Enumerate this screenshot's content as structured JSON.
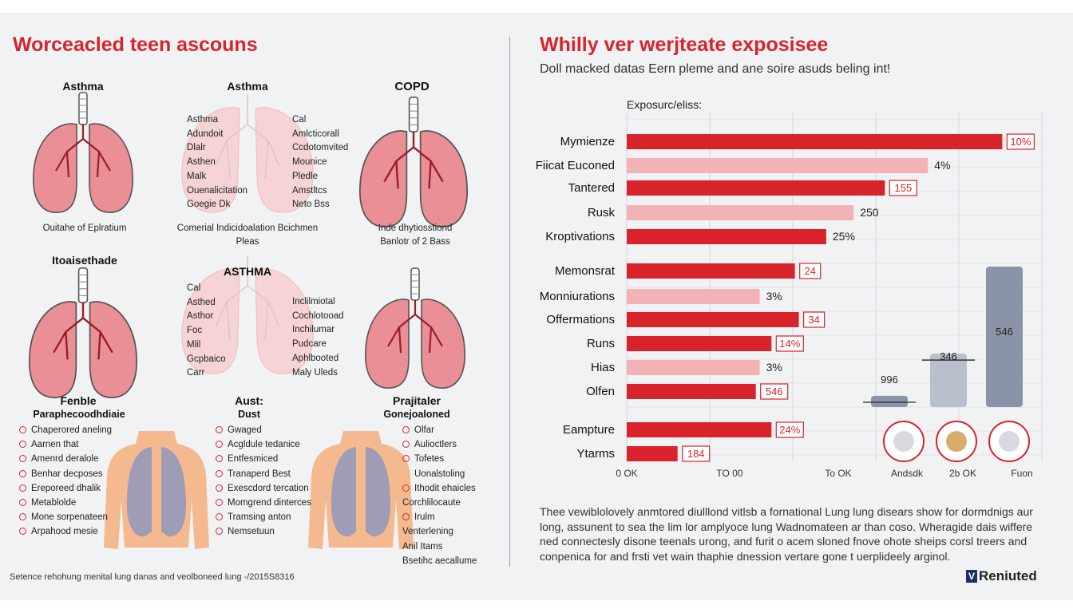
{
  "left": {
    "title": "Worceacled teen ascouns",
    "panels": [
      {
        "title": "Asthma",
        "caption": "Ouitahe of Eplratium"
      },
      {
        "title": "Asthma",
        "caption": "Comerial Indicidoalation Bcichmen Pleas",
        "labels_left": [
          "Asthma",
          "Adundoit",
          "Dlalr",
          "Asthen",
          "Malk",
          "Ouenalicitation",
          "Goegie Dk"
        ],
        "labels_right": [
          "Cal",
          "Amlcticorall",
          "Ccdotomvited",
          "Mounice",
          "Pledle",
          "Amstltcs",
          "Neto Bss"
        ]
      },
      {
        "title": "COPD",
        "caption": "Inde dhytiosstiond Banlotr of 2 Bass"
      },
      {
        "title": "Itoaisethade"
      },
      {
        "title": "ASTHMA",
        "labels_left": [
          "Cal",
          "Asthed",
          "Asthor",
          "Foc",
          "Mlil",
          "Gcpbaico",
          "Carr"
        ],
        "labels_right": [
          "Inclilmiotal",
          "Cochlotooad",
          "Inchilumar",
          "Pudcare",
          "Aphlbooted",
          "Maly Uleds"
        ]
      },
      {
        "title": ""
      }
    ],
    "bottom": [
      {
        "heading1": "Fenble",
        "heading2": "Paraphecoodhdiaie",
        "items": [
          "Chaperored aneling",
          "Aarnen that",
          "Amenrd deralole",
          "Benhar decposes",
          "Ereporeed dhalik",
          "Metablolde",
          "Mone sorpenateen",
          "Arpahood mesie"
        ]
      },
      {
        "heading1": "Aust:",
        "heading2": "Dust",
        "items": [
          "Gwaged",
          "Acgldule tedanice",
          "Entfesmiced",
          "Tranaperd Best",
          "Exescdord tercation",
          "Momgrend dinterces",
          "Tramsing anton",
          "Nemsetuun"
        ]
      },
      {
        "heading1": "Prajitaler",
        "heading2": "Gonejoaloned",
        "items": [
          "Olfar",
          "Aulioctlers",
          "Tofetes",
          "Uonalstoling",
          "Ithodit ehaicles",
          "Corchlilocaute",
          "Irulm",
          "Venterlening",
          "Anil Itams",
          "Bsetihc aecallume"
        ]
      }
    ],
    "footnote": "Setence rehohung menital lung danas and veolboneed lung -/2015S8316"
  },
  "right": {
    "title": "Whilly ver werjteate exposisee",
    "subtitle": "Doll macked datas Eern pleme and ane soire asuds beling int!",
    "note": "Thee vewiblolovely anmtored diulllond vitlsb a fornational Lung lung disears show for dormdnigs aur long, assunent to sea the lim lor amplyoce lung Wadnomateen ar than coso. Wheragide dais wiffere ned connectesly disone teenals urong, and furit o acem sloned fnove ohote sheips corsl treers and conpenica for and frsti vet wain thaphie dnession vertare gone t uerplideely arginol.",
    "brand": "Reniuted",
    "brand_mark": "V"
  },
  "chart_data": {
    "type": "bar",
    "orientation": "horizontal",
    "title": "Exposurc/eliss:",
    "categories": [
      "Mymienze",
      "Fiicat Euconed",
      "Tantered",
      "Rusk",
      "Kroptivations",
      "Memonsrat",
      "Monniurations",
      "Offermations",
      "Runs",
      "Hias",
      "Olfen",
      "Eampture",
      "Ytarms"
    ],
    "values": [
      96,
      77,
      66,
      58,
      51,
      43,
      34,
      44,
      37,
      34,
      33,
      37,
      13
    ],
    "data_labels": [
      "10%",
      "4%",
      "155",
      "250",
      "25%",
      "24",
      "3%",
      "34",
      "14%",
      "3%",
      "546",
      "24%",
      "184"
    ],
    "label_style": [
      "box",
      "plain",
      "box",
      "plain",
      "plain",
      "box",
      "plain",
      "box",
      "box",
      "plain",
      "box",
      "box",
      "box"
    ],
    "bar_colors": [
      "#d8232a",
      "#f3b3b6",
      "#d8232a",
      "#f3b3b6",
      "#d8232a",
      "#d8232a",
      "#f3b3b6",
      "#d8232a",
      "#d8232a",
      "#f3b3b6",
      "#d8232a",
      "#d8232a",
      "#d8232a"
    ],
    "x_tick_labels": [
      "0 OK",
      "TO 00",
      "To OK",
      "Andsdk",
      "2b OK",
      "Fuon"
    ],
    "side_bars": [
      {
        "label": "996",
        "value": 8
      },
      {
        "label": "346",
        "value": 38
      },
      {
        "label": "546",
        "value": 100
      }
    ],
    "side_bar_colors": [
      "#8a93a8",
      "#b9bfcc",
      "#8a93a8"
    ],
    "grid": true,
    "accent": "#d8232a"
  }
}
